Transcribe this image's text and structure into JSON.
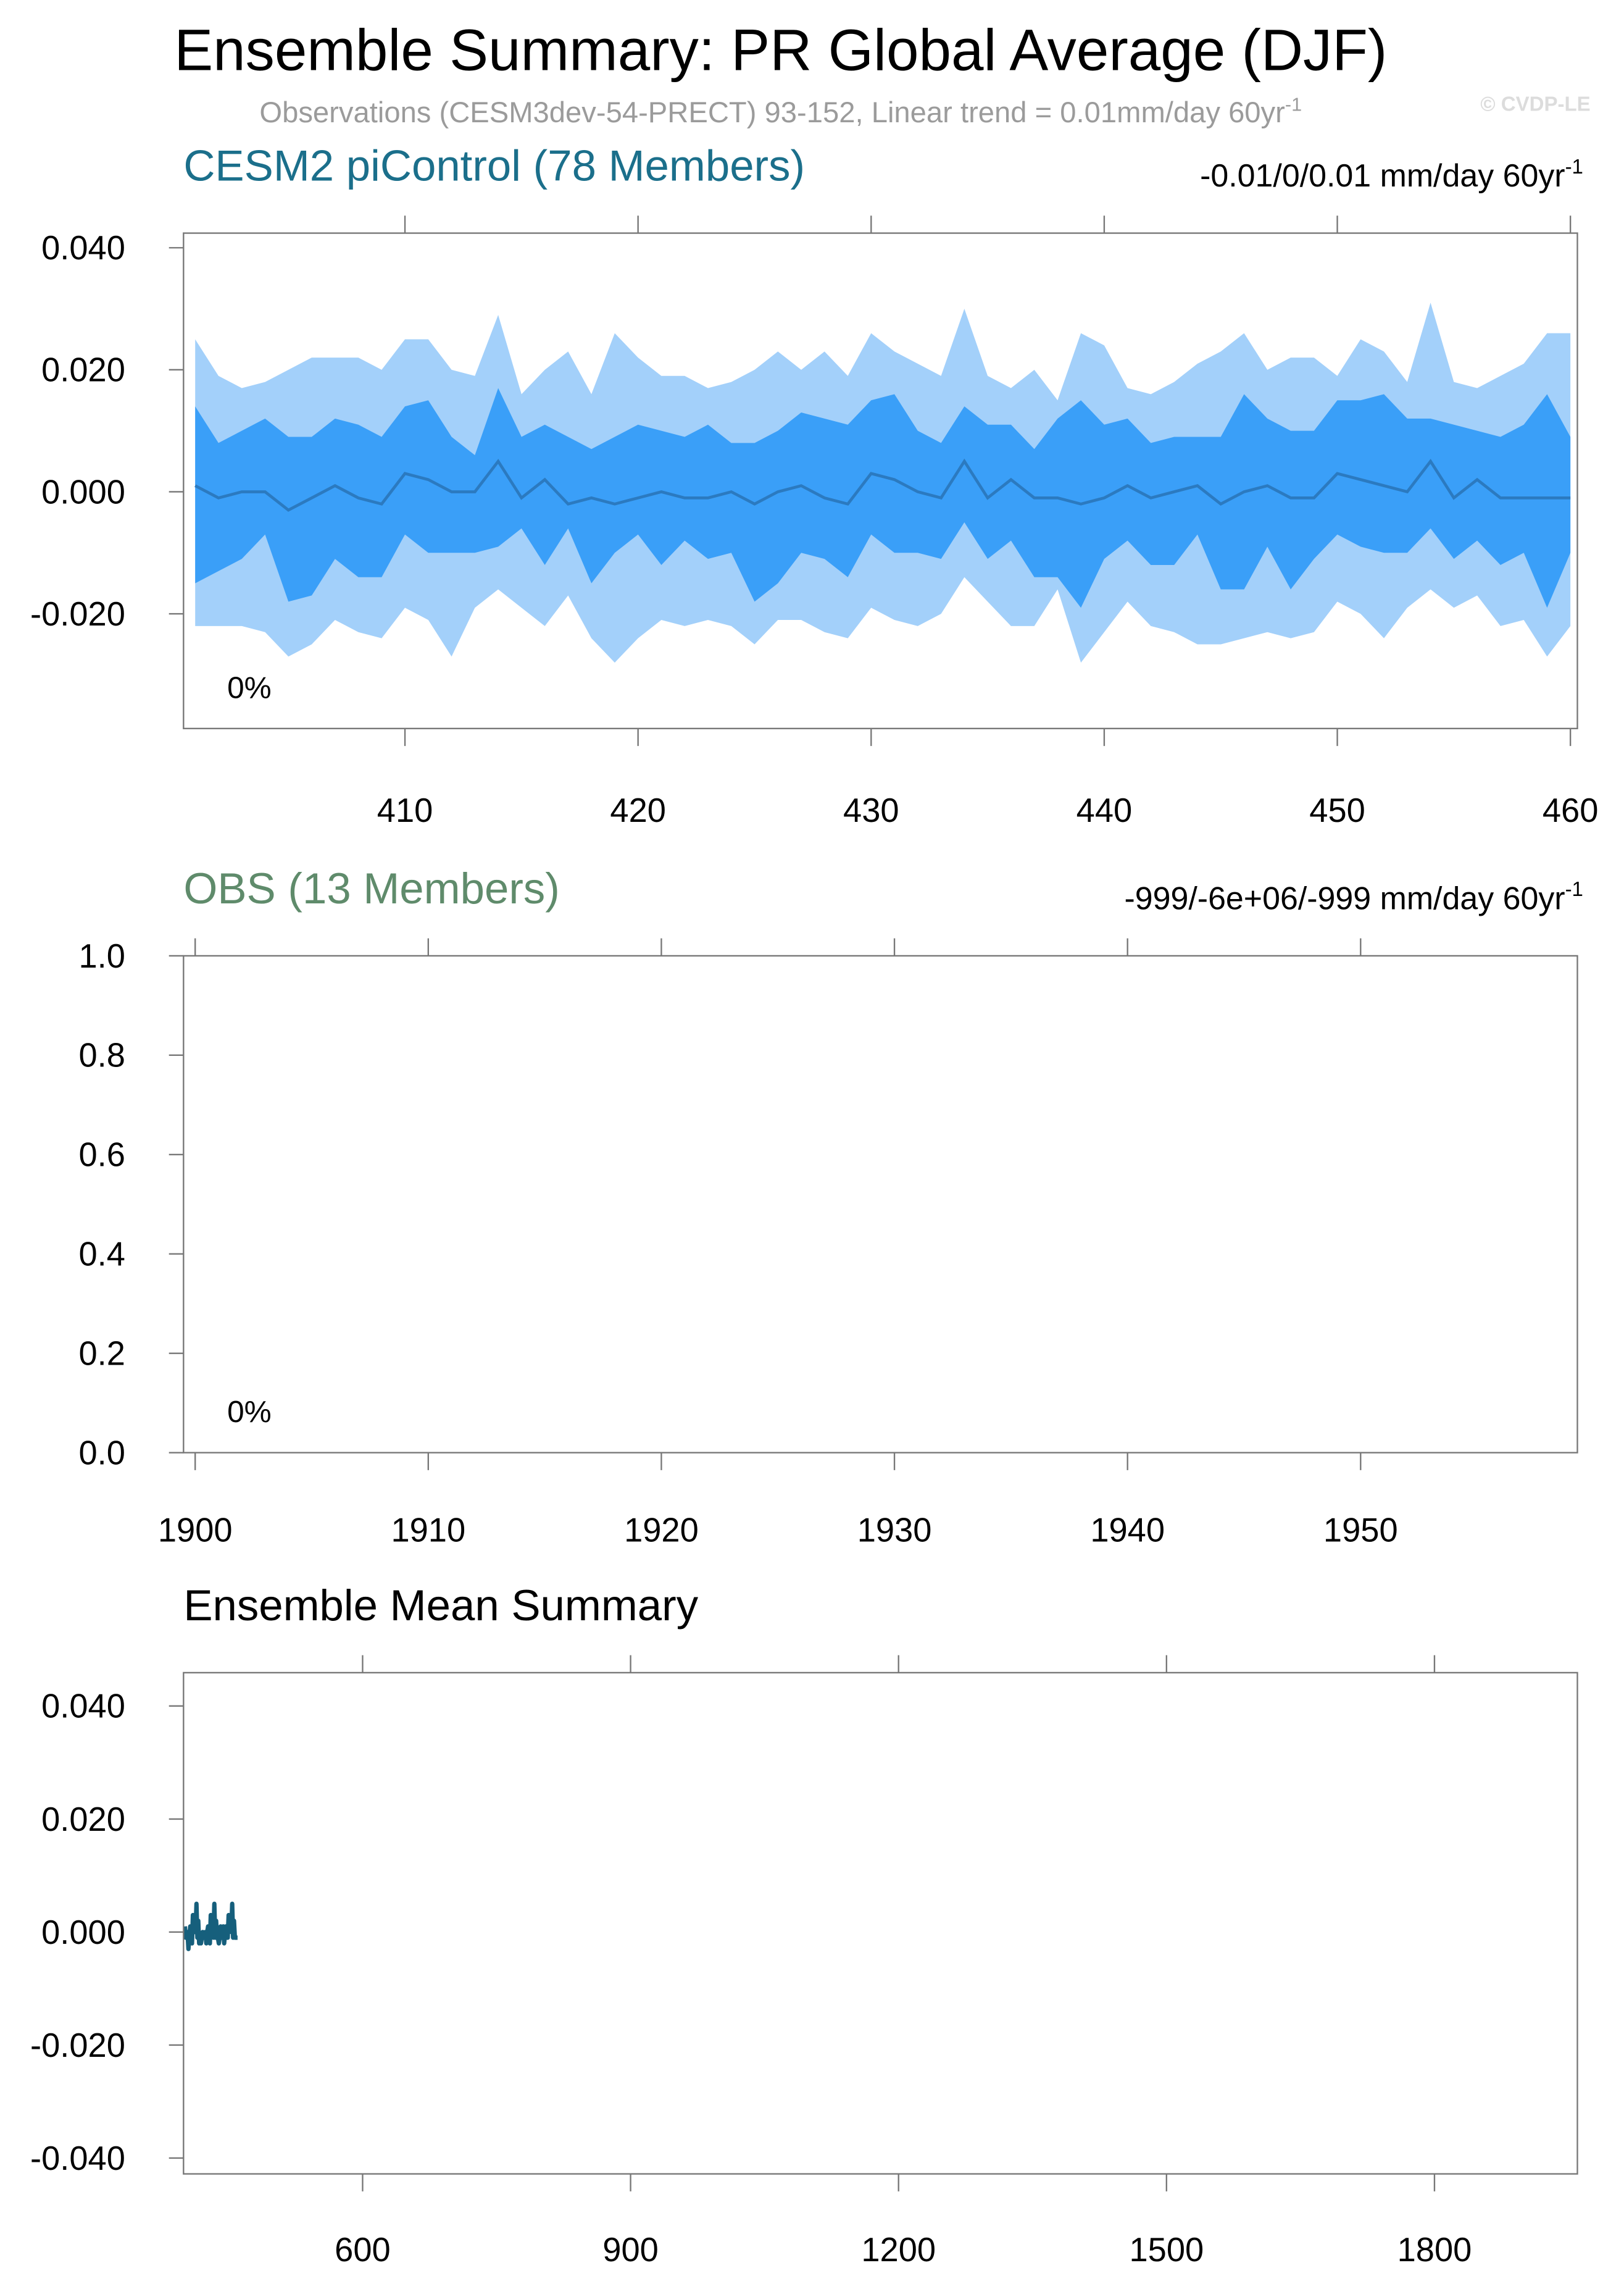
{
  "header": {
    "title": "Ensemble Summary: PR Global Average (DJF)",
    "subtitle": {
      "text": "Observations (CESM3dev-54-PRECT) 93-152, Linear trend = 0.01mm/day 60yr",
      "superscript": "-1"
    },
    "watermark": "© CVDP-LE"
  },
  "chart_data": [
    {
      "type": "band",
      "title": "CESM2 piControl (78 Members)",
      "title_color": "#1b6f8b",
      "right_label": {
        "text": "-0.01/0/0.01 mm/day 60yr",
        "superscript": "-1"
      },
      "annotation": "0%",
      "xlim": [
        400.5,
        460.3
      ],
      "xticks": [
        410,
        420,
        430,
        440,
        450,
        460
      ],
      "ylim": [
        -0.0388,
        0.0424
      ],
      "yticks": [
        {
          "value": 0.04,
          "label": "0.040"
        },
        {
          "value": 0.02,
          "label": "0.020"
        },
        {
          "value": 0,
          "label": "0.000"
        },
        {
          "value": -0.02,
          "label": "-0.020"
        }
      ],
      "x": [
        401,
        402,
        403,
        404,
        405,
        406,
        407,
        408,
        409,
        410,
        411,
        412,
        413,
        414,
        415,
        416,
        417,
        418,
        419,
        420,
        421,
        422,
        423,
        424,
        425,
        426,
        427,
        428,
        429,
        430,
        431,
        432,
        433,
        434,
        435,
        436,
        437,
        438,
        439,
        440,
        441,
        442,
        443,
        444,
        445,
        446,
        447,
        448,
        449,
        450,
        451,
        452,
        453,
        454,
        455,
        456,
        457,
        458,
        459,
        460
      ],
      "bands": [
        {
          "color": "#a3d0fa",
          "upper": [
            0.025,
            0.019,
            0.017,
            0.018,
            0.02,
            0.022,
            0.022,
            0.022,
            0.02,
            0.025,
            0.025,
            0.02,
            0.019,
            0.029,
            0.016,
            0.02,
            0.023,
            0.016,
            0.026,
            0.022,
            0.019,
            0.019,
            0.017,
            0.018,
            0.02,
            0.023,
            0.02,
            0.023,
            0.019,
            0.026,
            0.023,
            0.021,
            0.019,
            0.03,
            0.019,
            0.017,
            0.02,
            0.015,
            0.026,
            0.024,
            0.017,
            0.016,
            0.018,
            0.021,
            0.023,
            0.026,
            0.02,
            0.022,
            0.022,
            0.019,
            0.025,
            0.023,
            0.018,
            0.031,
            0.018,
            0.017,
            0.019,
            0.021,
            0.026,
            0.026
          ],
          "lower": [
            -0.022,
            -0.022,
            -0.022,
            -0.023,
            -0.027,
            -0.025,
            -0.021,
            -0.023,
            -0.024,
            -0.019,
            -0.021,
            -0.027,
            -0.019,
            -0.016,
            -0.019,
            -0.022,
            -0.017,
            -0.024,
            -0.028,
            -0.024,
            -0.021,
            -0.022,
            -0.021,
            -0.022,
            -0.025,
            -0.021,
            -0.021,
            -0.023,
            -0.024,
            -0.019,
            -0.021,
            -0.022,
            -0.02,
            -0.014,
            -0.018,
            -0.022,
            -0.022,
            -0.016,
            -0.028,
            -0.023,
            -0.018,
            -0.022,
            -0.023,
            -0.025,
            -0.025,
            -0.024,
            -0.023,
            -0.024,
            -0.023,
            -0.018,
            -0.02,
            -0.024,
            -0.019,
            -0.016,
            -0.019,
            -0.017,
            -0.022,
            -0.021,
            -0.027,
            -0.022
          ]
        },
        {
          "color": "#3a9ff8",
          "upper": [
            0.014,
            0.008,
            0.01,
            0.012,
            0.009,
            0.009,
            0.012,
            0.011,
            0.009,
            0.014,
            0.015,
            0.009,
            0.006,
            0.017,
            0.009,
            0.011,
            0.009,
            0.007,
            0.009,
            0.011,
            0.01,
            0.009,
            0.011,
            0.008,
            0.008,
            0.01,
            0.013,
            0.012,
            0.011,
            0.015,
            0.016,
            0.01,
            0.008,
            0.014,
            0.011,
            0.011,
            0.007,
            0.012,
            0.015,
            0.011,
            0.012,
            0.008,
            0.009,
            0.009,
            0.009,
            0.016,
            0.012,
            0.01,
            0.01,
            0.015,
            0.015,
            0.016,
            0.012,
            0.012,
            0.011,
            0.01,
            0.009,
            0.011,
            0.016,
            0.009
          ],
          "lower": [
            -0.015,
            -0.013,
            -0.011,
            -0.007,
            -0.018,
            -0.017,
            -0.011,
            -0.014,
            -0.014,
            -0.007,
            -0.01,
            -0.01,
            -0.01,
            -0.009,
            -0.006,
            -0.012,
            -0.006,
            -0.015,
            -0.01,
            -0.007,
            -0.012,
            -0.008,
            -0.011,
            -0.01,
            -0.018,
            -0.015,
            -0.01,
            -0.011,
            -0.014,
            -0.007,
            -0.01,
            -0.01,
            -0.011,
            -0.005,
            -0.011,
            -0.008,
            -0.014,
            -0.014,
            -0.019,
            -0.011,
            -0.008,
            -0.012,
            -0.012,
            -0.007,
            -0.016,
            -0.016,
            -0.009,
            -0.016,
            -0.011,
            -0.007,
            -0.009,
            -0.01,
            -0.01,
            -0.006,
            -0.011,
            -0.008,
            -0.012,
            -0.01,
            -0.019,
            -0.01
          ]
        }
      ],
      "line": {
        "color": "#2b7ac0",
        "values": [
          0.001,
          -0.001,
          0.0,
          0.0,
          -0.003,
          -0.001,
          0.001,
          -0.001,
          -0.002,
          0.003,
          0.002,
          0.0,
          0.0,
          0.005,
          -0.001,
          0.002,
          -0.002,
          -0.001,
          -0.002,
          -0.001,
          0.0,
          -0.001,
          -0.001,
          0.0,
          -0.002,
          0.0,
          0.001,
          -0.001,
          -0.002,
          0.003,
          0.002,
          0.0,
          -0.001,
          0.005,
          -0.001,
          0.002,
          -0.001,
          -0.001,
          -0.002,
          -0.001,
          0.001,
          -0.001,
          0.0,
          0.001,
          -0.002,
          0.0,
          0.001,
          -0.001,
          -0.001,
          0.003,
          0.002,
          0.001,
          0.0,
          0.005,
          -0.001,
          0.002,
          -0.001,
          -0.001,
          -0.001,
          -0.001
        ]
      }
    },
    {
      "type": "line",
      "title": "OBS (13 Members)",
      "title_color": "#5f8b6b",
      "right_label": {
        "text": "-999/-6e+06/-999 mm/day 60yr",
        "superscript": "-1"
      },
      "annotation": "0%",
      "xlim": [
        1899.5,
        1959.3
      ],
      "xticks": [
        1900,
        1910,
        1920,
        1930,
        1940,
        1950
      ],
      "ylim": [
        0,
        1
      ],
      "yticks": [
        {
          "value": 1,
          "label": "1.0"
        },
        {
          "value": 0.8,
          "label": "0.8"
        },
        {
          "value": 0.6,
          "label": "0.6"
        },
        {
          "value": 0.4,
          "label": "0.4"
        },
        {
          "value": 0.2,
          "label": "0.2"
        },
        {
          "value": 0,
          "label": "0.0"
        }
      ]
    },
    {
      "type": "line",
      "title": "Ensemble Mean Summary",
      "title_color": "#000000",
      "xlim": [
        399.5,
        1960
      ],
      "xticks": [
        600,
        900,
        1200,
        1500,
        1800
      ],
      "ylim": [
        -0.0428,
        0.0459
      ],
      "yticks": [
        {
          "value": 0.04,
          "label": "0.040"
        },
        {
          "value": 0.02,
          "label": "0.020"
        },
        {
          "value": 0,
          "label": "0.000"
        },
        {
          "value": -0.02,
          "label": "-0.020"
        },
        {
          "value": -0.04,
          "label": "-0.040"
        }
      ],
      "x": [
        401,
        402,
        403,
        404,
        405,
        406,
        407,
        408,
        409,
        410,
        411,
        412,
        413,
        414,
        415,
        416,
        417,
        418,
        419,
        420,
        421,
        422,
        423,
        424,
        425,
        426,
        427,
        428,
        429,
        430,
        431,
        432,
        433,
        434,
        435,
        436,
        437,
        438,
        439,
        440,
        441,
        442,
        443,
        444,
        445,
        446,
        447,
        448,
        449,
        450,
        451,
        452,
        453,
        454,
        455,
        456,
        457,
        458,
        459,
        460
      ],
      "series": [
        {
          "color": "#165f7c",
          "values": [
            0.001,
            -0.001,
            0.0,
            0.0,
            -0.003,
            -0.001,
            0.001,
            -0.001,
            -0.002,
            0.003,
            0.002,
            0.0,
            0.0,
            0.005,
            -0.001,
            0.002,
            -0.002,
            -0.001,
            -0.002,
            -0.001,
            0.0,
            -0.001,
            -0.001,
            0.0,
            -0.002,
            0.0,
            0.001,
            -0.001,
            -0.002,
            0.003,
            0.002,
            0.0,
            -0.001,
            0.005,
            -0.001,
            0.002,
            -0.001,
            -0.001,
            -0.002,
            -0.001,
            0.001,
            -0.001,
            0.0,
            0.001,
            -0.002,
            0.0,
            0.001,
            -0.001,
            -0.001,
            0.003,
            0.002,
            0.001,
            0.0,
            0.005,
            -0.001,
            0.002,
            -0.001,
            -0.001,
            -0.001,
            -0.001
          ]
        }
      ]
    }
  ]
}
